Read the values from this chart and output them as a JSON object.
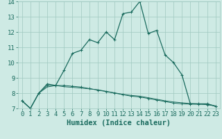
{
  "xlabel": "Humidex (Indice chaleur)",
  "bg_color": "#ceeae4",
  "grid_color": "#a0c8c0",
  "line_color": "#1a6b5e",
  "xlim": [
    -0.5,
    23.5
  ],
  "ylim": [
    7,
    14
  ],
  "yticks": [
    7,
    8,
    9,
    10,
    11,
    12,
    13,
    14
  ],
  "xticks": [
    0,
    1,
    2,
    3,
    4,
    5,
    6,
    7,
    8,
    9,
    10,
    11,
    12,
    13,
    14,
    15,
    16,
    17,
    18,
    19,
    20,
    21,
    22,
    23
  ],
  "series1_x": [
    0,
    1,
    2,
    3,
    4,
    5,
    6,
    7,
    8,
    9,
    10,
    11,
    12,
    13,
    14,
    15,
    16,
    17,
    18,
    19,
    20,
    21,
    22,
    23
  ],
  "series1_y": [
    7.5,
    7.0,
    8.0,
    8.6,
    8.5,
    9.5,
    10.6,
    10.8,
    11.5,
    11.3,
    12.0,
    11.5,
    13.2,
    13.3,
    14.0,
    11.9,
    12.1,
    10.5,
    10.0,
    9.2,
    7.3,
    7.3,
    7.3,
    7.15
  ],
  "series2_x": [
    0,
    1,
    2,
    3,
    4,
    5,
    6,
    7,
    8,
    9,
    10,
    11,
    12,
    13,
    14,
    15,
    16,
    17,
    18,
    19,
    20,
    21,
    22,
    23
  ],
  "series2_y": [
    7.5,
    7.0,
    8.0,
    8.5,
    8.5,
    8.5,
    8.45,
    8.4,
    8.3,
    8.2,
    8.1,
    8.0,
    7.9,
    7.8,
    7.75,
    7.65,
    7.55,
    7.45,
    7.35,
    7.3,
    7.28,
    7.27,
    7.25,
    7.15
  ],
  "series3_x": [
    0,
    1,
    2,
    3,
    4,
    5,
    6,
    7,
    8,
    9,
    10,
    11,
    12,
    13,
    14,
    15,
    16,
    17,
    18,
    19,
    20,
    21,
    22,
    23
  ],
  "series3_y": [
    7.5,
    7.0,
    8.0,
    8.4,
    8.5,
    8.42,
    8.38,
    8.33,
    8.28,
    8.22,
    8.12,
    8.02,
    7.92,
    7.85,
    7.8,
    7.7,
    7.6,
    7.5,
    7.42,
    7.37,
    7.32,
    7.3,
    7.28,
    7.15
  ],
  "xlabel_fontsize": 7.5,
  "tick_fontsize": 6.5
}
